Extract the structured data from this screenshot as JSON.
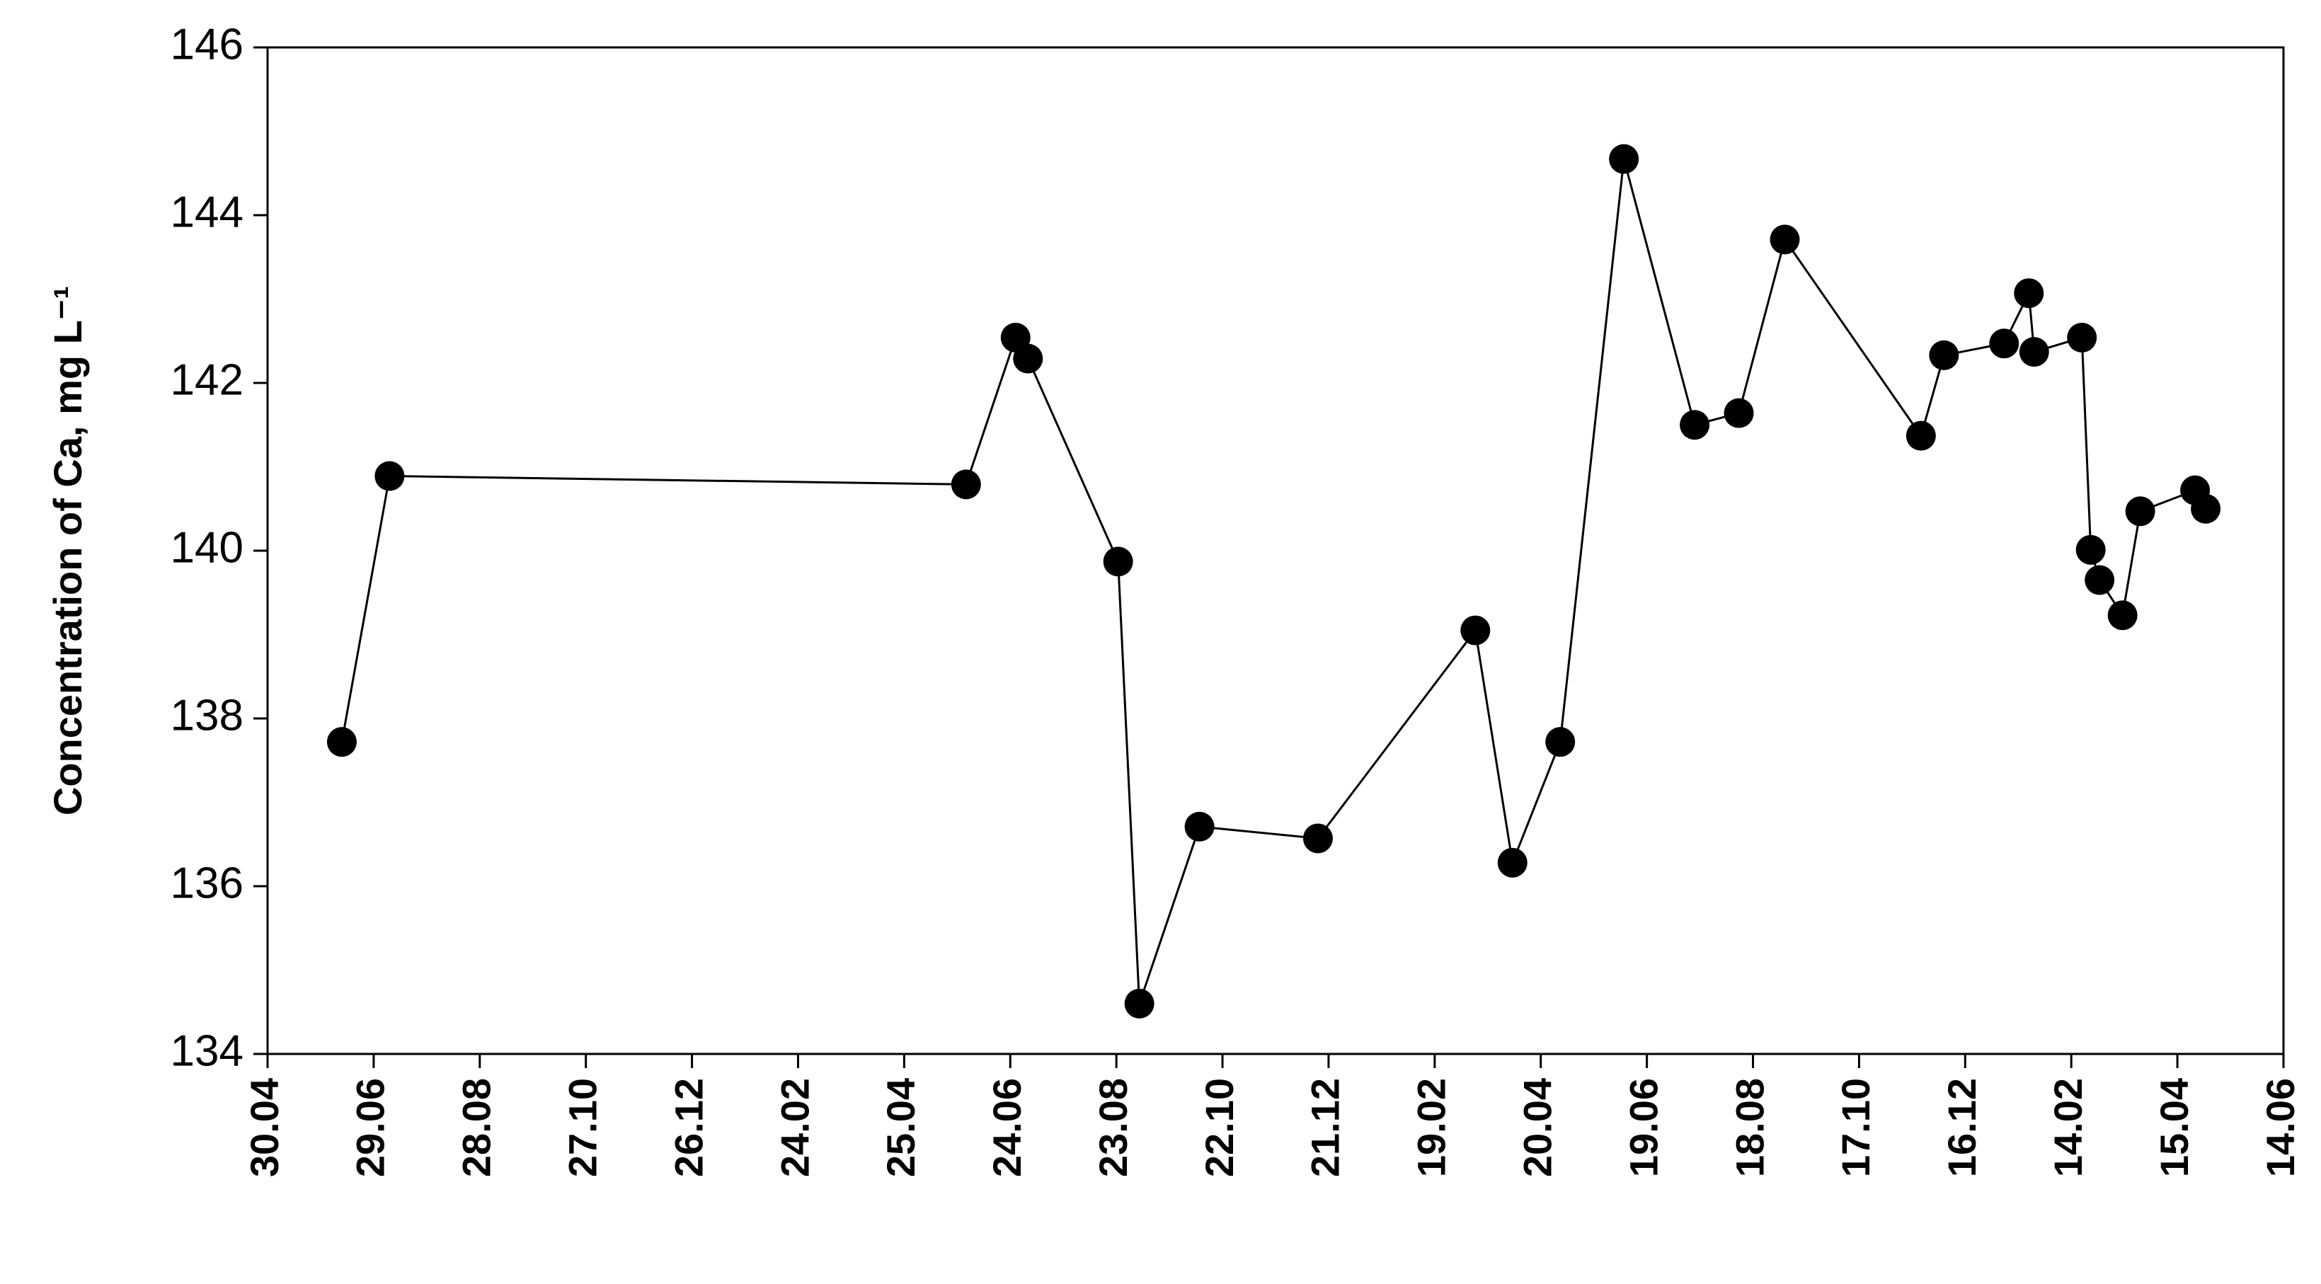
{
  "chart_data": {
    "type": "line",
    "y_label": "Concentration of Ca, mg L⁻¹",
    "x": [
      42,
      69,
      395,
      423,
      430,
      481,
      493,
      527,
      594,
      683,
      704,
      731,
      767,
      807,
      832,
      858,
      935,
      948,
      982,
      996,
      999,
      1026,
      1031,
      1036,
      1049,
      1059,
      1090,
      1096
    ],
    "series": [
      {
        "color": "#000000",
        "values": [
          137.72,
          140.89,
          140.79,
          142.54,
          142.29,
          139.87,
          134.6,
          136.71,
          136.57,
          139.05,
          136.28,
          137.72,
          144.67,
          141.5,
          141.64,
          143.71,
          141.37,
          142.33,
          142.47,
          143.07,
          142.37,
          142.54,
          140.01,
          139.65,
          139.23,
          140.47,
          140.72,
          140.5
        ]
      }
    ],
    "xlim": [
      0,
      1140
    ],
    "xticks": [
      {
        "value": 0,
        "label": "30.04"
      },
      {
        "value": 60,
        "label": "29.06"
      },
      {
        "value": 120,
        "label": "28.08"
      },
      {
        "value": 180,
        "label": "27.10"
      },
      {
        "value": 240,
        "label": "26.12"
      },
      {
        "value": 300,
        "label": "24.02"
      },
      {
        "value": 360,
        "label": "25.04"
      },
      {
        "value": 420,
        "label": "24.06"
      },
      {
        "value": 480,
        "label": "23.08"
      },
      {
        "value": 540,
        "label": "22.10"
      },
      {
        "value": 600,
        "label": "21.12"
      },
      {
        "value": 660,
        "label": "19.02"
      },
      {
        "value": 720,
        "label": "20.04"
      },
      {
        "value": 780,
        "label": "19.06"
      },
      {
        "value": 840,
        "label": "18.08"
      },
      {
        "value": 900,
        "label": "17.10"
      },
      {
        "value": 960,
        "label": "16.12"
      },
      {
        "value": 1020,
        "label": "14.02"
      },
      {
        "value": 1080,
        "label": "15.04"
      },
      {
        "value": 1140,
        "label": "14.06"
      }
    ],
    "ylim": [
      134,
      146
    ],
    "yticks": [
      134,
      136,
      138,
      140,
      142,
      144,
      146
    ],
    "grid": false
  }
}
